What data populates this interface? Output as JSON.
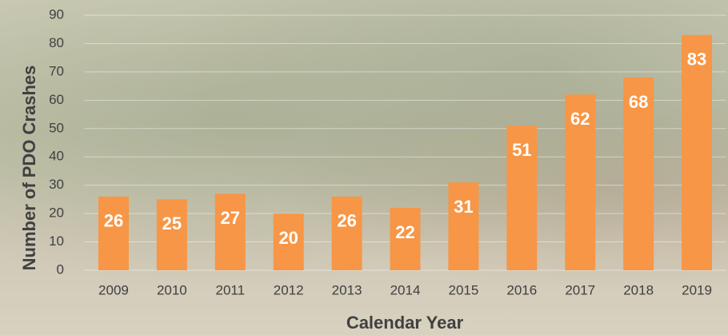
{
  "chart_data": {
    "type": "bar",
    "x_label": "Calendar Year",
    "y_label": "Number of PDO Crashes",
    "categories": [
      "2009",
      "2010",
      "2011",
      "2012",
      "2013",
      "2014",
      "2015",
      "2016",
      "2017",
      "2018",
      "2019"
    ],
    "values": [
      26,
      25,
      27,
      20,
      26,
      22,
      31,
      51,
      62,
      68,
      83
    ],
    "color": "#f79646",
    "ylim": [
      0,
      90
    ],
    "yticks": [
      0,
      10,
      20,
      30,
      40,
      50,
      60,
      70,
      80,
      90
    ],
    "grid": true
  }
}
